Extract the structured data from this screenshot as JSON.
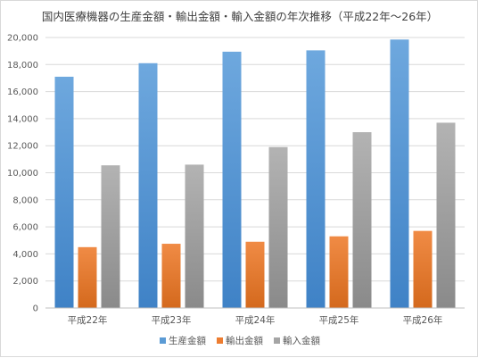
{
  "chart_data": {
    "type": "bar",
    "title": "国内医療機器の生産金額・輸出金額・輸入金額の年次推移（平成22年〜26年）",
    "xlabel": "",
    "ylabel": "",
    "categories": [
      "平成22年",
      "平成23年",
      "平成24年",
      "平成25年",
      "平成26年"
    ],
    "ylim": [
      0,
      20000
    ],
    "yticks": [
      0,
      2000,
      4000,
      6000,
      8000,
      10000,
      12000,
      14000,
      16000,
      18000,
      20000
    ],
    "ytick_labels": [
      "0",
      "2,000",
      "4,000",
      "6,000",
      "8,000",
      "10,000",
      "12,000",
      "14,000",
      "16,000",
      "18,000",
      "20,000"
    ],
    "grid": true,
    "legend_position": "bottom",
    "series": [
      {
        "name": "生産金額",
        "color": "#5b9bd5",
        "values": [
          17100,
          18100,
          18950,
          19050,
          19850
        ]
      },
      {
        "name": "輸出金額",
        "color": "#ed7d31",
        "values": [
          4500,
          4750,
          4900,
          5300,
          5700
        ]
      },
      {
        "name": "輸入金額",
        "color": "#a5a5a5",
        "values": [
          10550,
          10600,
          11900,
          13000,
          13700
        ]
      }
    ]
  }
}
